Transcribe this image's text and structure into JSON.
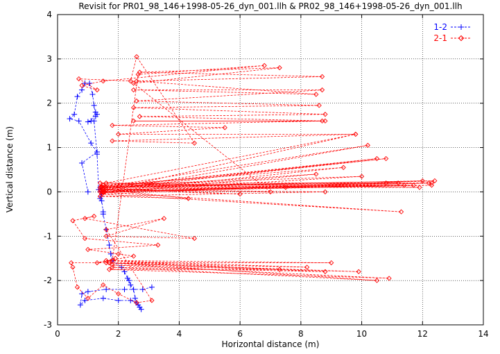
{
  "chart_data": {
    "type": "scatter",
    "title": "Revisit for PR01_98_146+1998-05-26_dyn_001.llh & PR02_98_146+1998-05-26_dyn_001.llh",
    "xlabel": "Horizontal distance (m)",
    "ylabel": "Vertical distance (m)",
    "xlim": [
      0,
      14
    ],
    "ylim": [
      -3,
      4
    ],
    "xticks": [
      0,
      2,
      4,
      6,
      8,
      10,
      12,
      14
    ],
    "yticks": [
      -3,
      -2,
      -1,
      0,
      1,
      2,
      3,
      4
    ],
    "grid": true,
    "legend_position": "top-right",
    "series": [
      {
        "name": "1-2",
        "color": "#0000ff",
        "marker": "plus",
        "line": "dashed",
        "points": [
          [
            1.0,
            0.0
          ],
          [
            0.8,
            0.65
          ],
          [
            1.3,
            0.9
          ],
          [
            1.1,
            1.1
          ],
          [
            0.7,
            1.6
          ],
          [
            0.4,
            1.65
          ],
          [
            0.55,
            1.75
          ],
          [
            0.65,
            2.15
          ],
          [
            0.8,
            2.3
          ],
          [
            0.9,
            2.45
          ],
          [
            1.05,
            2.45
          ],
          [
            1.15,
            2.2
          ],
          [
            1.2,
            1.95
          ],
          [
            1.25,
            1.7
          ],
          [
            1.3,
            1.75
          ],
          [
            1.25,
            1.8
          ],
          [
            1.1,
            1.6
          ],
          [
            1.0,
            1.58
          ],
          [
            1.2,
            1.6
          ],
          [
            1.3,
            0.85
          ],
          [
            1.35,
            0.05
          ],
          [
            1.4,
            0.1
          ],
          [
            1.42,
            0.0
          ],
          [
            1.45,
            -0.1
          ],
          [
            1.4,
            -0.15
          ],
          [
            1.45,
            -0.2
          ],
          [
            1.5,
            -0.45
          ],
          [
            1.5,
            -0.5
          ],
          [
            1.6,
            -0.85
          ],
          [
            1.7,
            -1.2
          ],
          [
            1.75,
            -1.4
          ],
          [
            1.8,
            -1.55
          ],
          [
            2.1,
            -1.7
          ],
          [
            2.2,
            -1.8
          ],
          [
            2.3,
            -1.95
          ],
          [
            2.35,
            -2.0
          ],
          [
            2.4,
            -2.1
          ],
          [
            2.5,
            -2.2
          ],
          [
            2.55,
            -2.4
          ],
          [
            2.6,
            -2.5
          ],
          [
            2.65,
            -2.55
          ],
          [
            2.7,
            -2.6
          ],
          [
            2.75,
            -2.65
          ],
          [
            2.6,
            -2.5
          ],
          [
            2.4,
            -2.45
          ],
          [
            2.0,
            -2.45
          ],
          [
            1.5,
            -2.4
          ],
          [
            0.9,
            -2.45
          ],
          [
            0.75,
            -2.55
          ],
          [
            0.8,
            -2.3
          ],
          [
            1.0,
            -2.25
          ],
          [
            1.6,
            -2.2
          ],
          [
            2.2,
            -2.2
          ],
          [
            2.8,
            -2.2
          ],
          [
            3.1,
            -2.15
          ]
        ]
      },
      {
        "name": "2-1",
        "color": "#ff0000",
        "marker": "diamond",
        "line": "dashed",
        "points": [
          [
            1.4,
            0.1
          ],
          [
            10.2,
            1.05
          ],
          [
            1.45,
            0.0
          ],
          [
            12.3,
            0.2
          ],
          [
            1.5,
            0.15
          ],
          [
            11.4,
            0.15
          ],
          [
            1.4,
            0.05
          ],
          [
            10.8,
            0.75
          ],
          [
            1.5,
            0.1
          ],
          [
            12.0,
            0.25
          ],
          [
            1.45,
            -0.05
          ],
          [
            11.3,
            -0.45
          ],
          [
            1.4,
            0.0
          ],
          [
            9.8,
            1.3
          ],
          [
            1.6,
            0.2
          ],
          [
            12.2,
            0.2
          ],
          [
            1.5,
            0.0
          ],
          [
            11.7,
            0.15
          ],
          [
            1.45,
            0.1
          ],
          [
            10.5,
            0.75
          ],
          [
            1.5,
            0.05
          ],
          [
            12.3,
            0.15
          ],
          [
            1.45,
            0.0
          ],
          [
            10.0,
            0.35
          ],
          [
            1.5,
            0.15
          ],
          [
            9.4,
            0.55
          ],
          [
            1.55,
            0.0
          ],
          [
            11.2,
            0.2
          ],
          [
            1.45,
            0.12
          ],
          [
            12.4,
            0.25
          ],
          [
            1.5,
            -0.02
          ],
          [
            8.5,
            0.4
          ],
          [
            1.6,
            0.1
          ],
          [
            11.9,
            0.1
          ],
          [
            1.4,
            0.2
          ],
          [
            7.5,
            0.1
          ],
          [
            1.5,
            0.0
          ],
          [
            10.8,
            0.2
          ],
          [
            1.45,
            0.1
          ],
          [
            6.0,
            -0.05
          ],
          [
            1.5,
            0.05
          ],
          [
            8.8,
            0.0
          ],
          [
            1.4,
            -0.1
          ],
          [
            4.3,
            -0.15
          ],
          [
            1.6,
            0.05
          ],
          [
            7.0,
            0.0
          ],
          [
            2.5,
            2.45
          ],
          [
            7.3,
            2.8
          ],
          [
            2.7,
            2.7
          ],
          [
            8.7,
            2.6
          ],
          [
            2.6,
            2.5
          ],
          [
            8.5,
            2.2
          ],
          [
            2.5,
            2.3
          ],
          [
            8.7,
            2.3
          ],
          [
            2.6,
            2.05
          ],
          [
            8.6,
            1.95
          ],
          [
            2.5,
            1.9
          ],
          [
            8.8,
            1.75
          ],
          [
            2.7,
            1.7
          ],
          [
            8.8,
            1.6
          ],
          [
            2.5,
            1.6
          ],
          [
            8.7,
            1.6
          ],
          [
            1.8,
            1.5
          ],
          [
            5.5,
            1.45
          ],
          [
            2.0,
            1.3
          ],
          [
            9.8,
            1.3
          ],
          [
            1.8,
            1.15
          ],
          [
            4.5,
            1.1
          ],
          [
            2.6,
            3.05
          ],
          [
            2.4,
            2.5
          ],
          [
            0.7,
            2.55
          ],
          [
            1.3,
            2.3
          ],
          [
            0.8,
            2.4
          ],
          [
            1.5,
            2.5
          ],
          [
            6.8,
            2.85
          ],
          [
            2.65,
            2.65
          ],
          [
            1.8,
            -1.55
          ],
          [
            9.0,
            -1.6
          ],
          [
            1.7,
            -1.6
          ],
          [
            10.5,
            -2.0
          ],
          [
            1.8,
            -1.7
          ],
          [
            8.8,
            -1.8
          ],
          [
            1.6,
            -1.6
          ],
          [
            9.9,
            -1.8
          ],
          [
            1.8,
            -1.65
          ],
          [
            10.9,
            -1.95
          ],
          [
            1.7,
            -1.75
          ],
          [
            7.3,
            -1.75
          ],
          [
            1.6,
            -1.55
          ],
          [
            8.2,
            -1.7
          ],
          [
            1.7,
            -1.6
          ],
          [
            0.45,
            -1.6
          ],
          [
            0.5,
            -1.7
          ],
          [
            0.65,
            -2.15
          ],
          [
            1.0,
            -2.4
          ],
          [
            1.5,
            -2.1
          ],
          [
            2.0,
            -2.3
          ],
          [
            2.6,
            -2.5
          ],
          [
            3.1,
            -2.45
          ],
          [
            1.6,
            -0.85
          ],
          [
            3.5,
            -0.6
          ],
          [
            1.6,
            -1.0
          ],
          [
            4.5,
            -1.05
          ],
          [
            0.9,
            -0.6
          ],
          [
            1.2,
            -0.55
          ],
          [
            0.5,
            -0.65
          ],
          [
            0.9,
            -1.05
          ],
          [
            3.3,
            -1.2
          ],
          [
            1.0,
            -1.3
          ],
          [
            2.0,
            -1.4
          ],
          [
            2.5,
            -1.45
          ],
          [
            1.3,
            -1.6
          ],
          [
            1.9,
            -1.5
          ]
        ]
      }
    ]
  }
}
